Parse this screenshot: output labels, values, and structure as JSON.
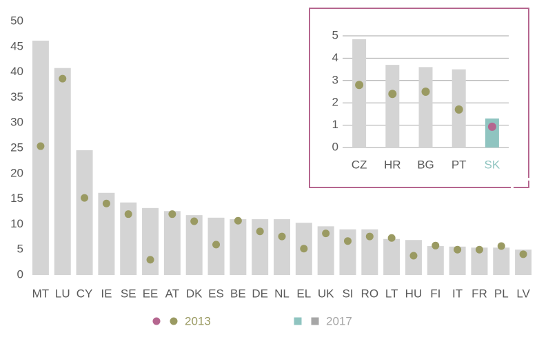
{
  "chart_data": [
    {
      "type": "bar",
      "categories": [
        "MT",
        "LU",
        "CY",
        "IE",
        "SE",
        "EE",
        "AT",
        "DK",
        "ES",
        "BE",
        "DE",
        "NL",
        "EL",
        "UK",
        "SI",
        "RO",
        "LT",
        "HU",
        "FI",
        "IT",
        "FR",
        "PL",
        "LV"
      ],
      "series": [
        {
          "name": "2017",
          "mark": "bar",
          "color": "#d4d4d4",
          "legend_colors": [
            "#8fc4c0",
            "#a6a6a6"
          ],
          "legend_text_color": "#a6a6a6",
          "values": [
            46.2,
            40.8,
            24.6,
            16.2,
            14.3,
            13.2,
            12.6,
            11.8,
            11.3,
            11.0,
            11.0,
            11.0,
            10.3,
            9.6,
            9.0,
            9.0,
            7.1,
            6.9,
            5.7,
            5.6,
            5.4,
            5.4,
            5.0
          ]
        },
        {
          "name": "2013",
          "mark": "dot",
          "color": "#9a9a62",
          "legend_colors": [
            "#b5668f",
            "#9a9a62"
          ],
          "legend_text_color": "#9a9a62",
          "values": [
            25.4,
            38.7,
            15.2,
            14.1,
            12.0,
            3.0,
            12.0,
            10.6,
            6.0,
            10.7,
            8.6,
            7.6,
            5.2,
            8.2,
            6.7,
            7.6,
            7.3,
            3.8,
            5.8,
            5.0,
            5.0,
            5.7,
            4.1
          ]
        }
      ],
      "ylim": [
        0,
        50
      ],
      "yticks": [
        0,
        5,
        10,
        15,
        20,
        25,
        30,
        35,
        40,
        45,
        50
      ],
      "grid": false
    },
    {
      "type": "bar",
      "categories": [
        "CZ",
        "HR",
        "BG",
        "PT",
        "SK"
      ],
      "category_colors": [
        "#595959",
        "#595959",
        "#595959",
        "#595959",
        "#8fc4c0"
      ],
      "series": [
        {
          "mark": "bar",
          "colors": [
            "#d4d4d4",
            "#d4d4d4",
            "#d4d4d4",
            "#d4d4d4",
            "#8fc4c0"
          ],
          "values": [
            4.85,
            3.7,
            3.6,
            3.5,
            1.3
          ]
        },
        {
          "mark": "dot",
          "colors": [
            "#9a9a62",
            "#9a9a62",
            "#9a9a62",
            "#9a9a62",
            "#b5668f"
          ],
          "values": [
            2.8,
            2.4,
            2.5,
            1.7,
            0.93
          ]
        }
      ],
      "ylim": [
        0,
        5
      ],
      "yticks": [
        0,
        1,
        2,
        3,
        4,
        5
      ],
      "grid": true
    }
  ]
}
